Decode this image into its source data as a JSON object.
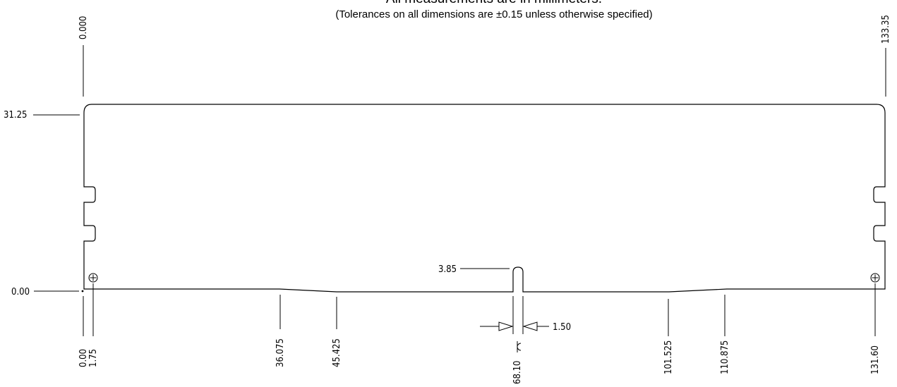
{
  "header": {
    "title": "All measurements are in millimeters.",
    "subtitle": "(Tolerances on all dimensions are ±0.15 unless otherwise specified)"
  },
  "dimensions": {
    "top_left": "0.000",
    "top_right": "133.35",
    "left_top": "31.25",
    "left_zero": "0.00",
    "notch_depth": "3.85",
    "notch_width": "1.50",
    "bottom": {
      "origin": "0.00",
      "hole_left": "1.75",
      "chamfer_left_start": "36.075",
      "chamfer_left_end": "45.425",
      "centerline": "68.10",
      "chamfer_right_start": "101.525",
      "chamfer_right_end": "110.875",
      "hole_right": "131.60"
    }
  },
  "symbols": {
    "centerline": "centerline-icon",
    "mounting_hole": "mounting-hole-icon",
    "origin_marker": "origin-dot-icon"
  }
}
